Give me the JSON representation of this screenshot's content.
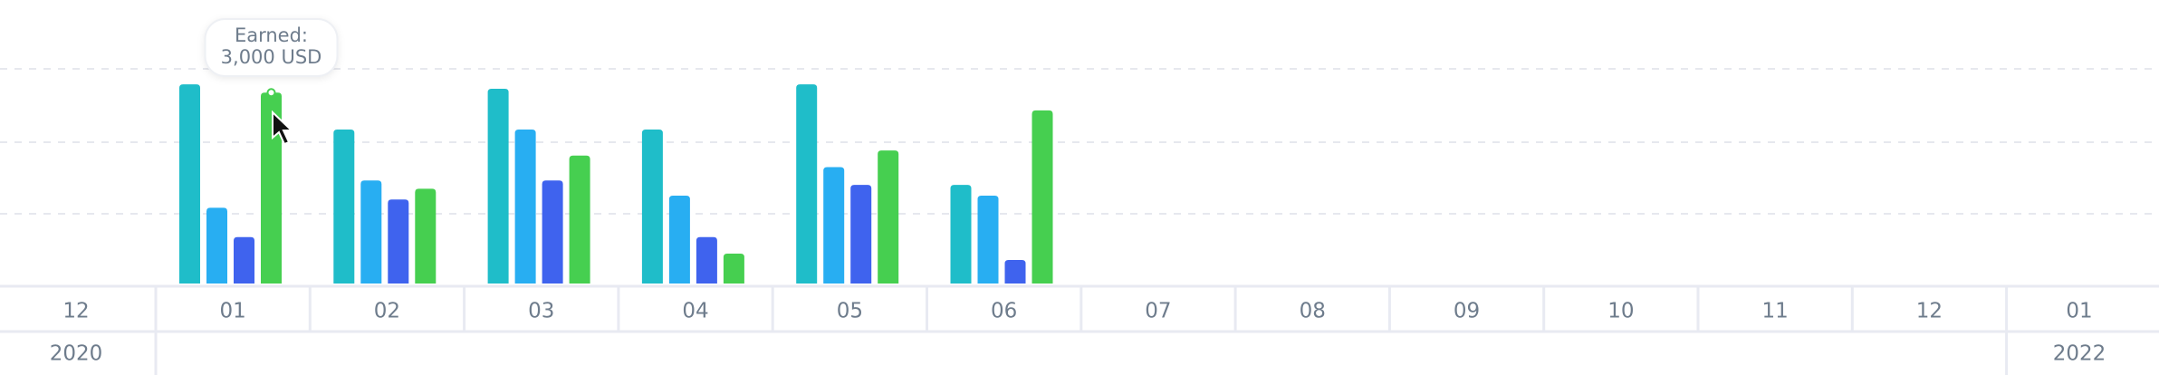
{
  "chart_data": {
    "type": "bar",
    "categories": [
      "12",
      "01",
      "02",
      "03",
      "04",
      "05",
      "06",
      "07",
      "08",
      "09",
      "10",
      "11",
      "12",
      "01"
    ],
    "year_labels": [
      "2020",
      "2022"
    ],
    "tooltip_title": "Earned:",
    "series": [
      {
        "color": "#1fbdc9",
        "values": [
          null,
          3130,
          2420,
          3060,
          2420,
          3130,
          1550,
          null,
          null,
          null,
          null,
          null,
          null,
          null
        ]
      },
      {
        "color": "#28aef2",
        "values": [
          null,
          1190,
          1620,
          2420,
          1380,
          1830,
          1380,
          null,
          null,
          null,
          null,
          null,
          null,
          null
        ]
      },
      {
        "color": "#3f63ee",
        "values": [
          null,
          730,
          1320,
          1620,
          730,
          1550,
          370,
          null,
          null,
          null,
          null,
          null,
          null,
          null
        ]
      },
      {
        "color": "#46cf50",
        "values": [
          null,
          3000,
          1490,
          2010,
          470,
          2090,
          2720,
          null,
          null,
          null,
          null,
          null,
          null,
          null
        ],
        "value_labels": [
          "",
          "3,000 USD",
          null,
          null,
          null,
          null,
          null,
          null,
          null,
          null,
          null,
          null,
          null,
          null
        ]
      }
    ],
    "ylim": [
      0,
      4000
    ]
  }
}
